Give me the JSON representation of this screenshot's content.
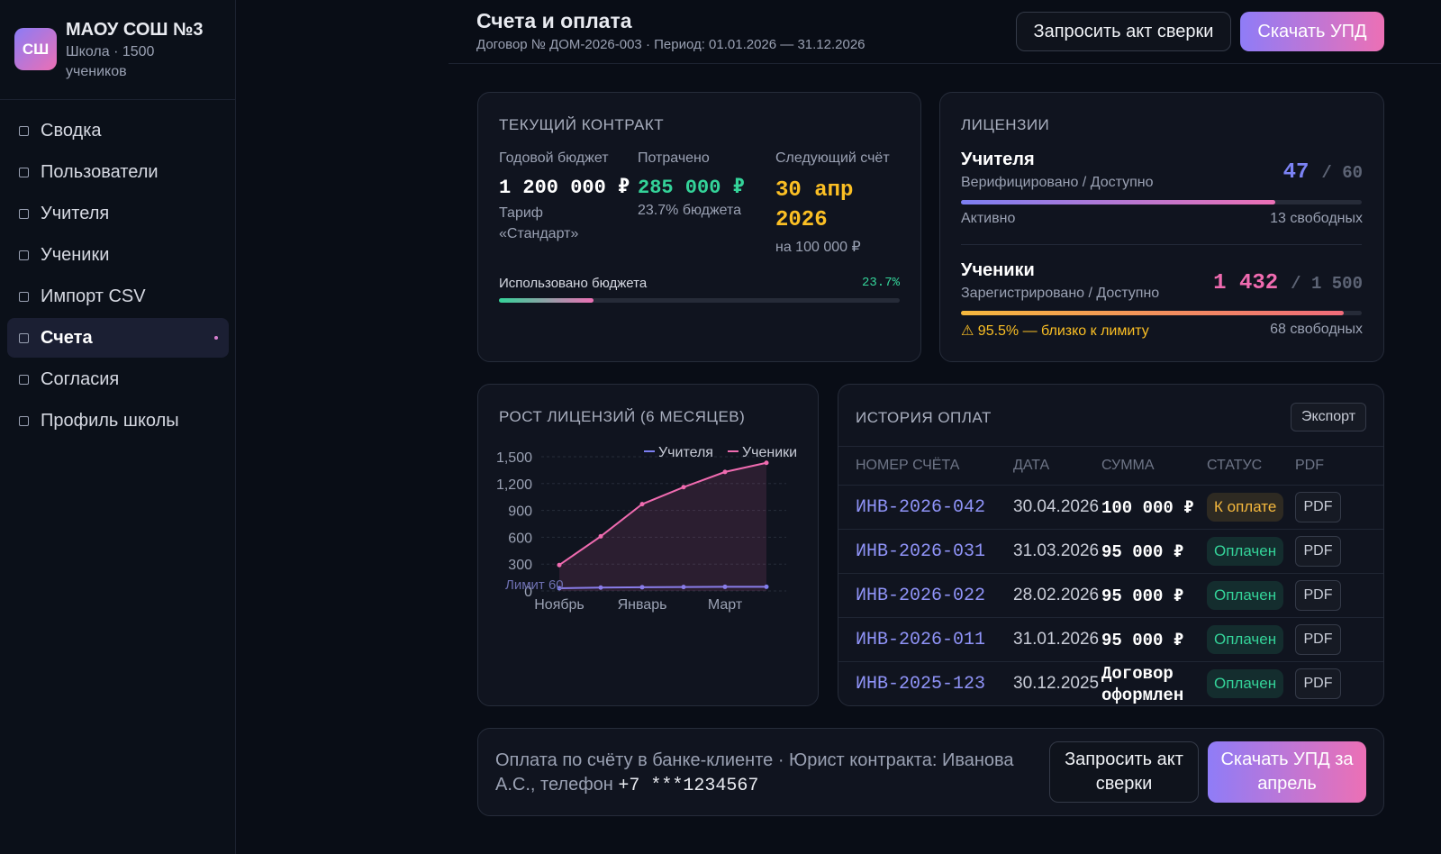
{
  "sidebar": {
    "logo": "СШ",
    "org_name": "МАОУ СОШ №3",
    "org_sub": "Школа · 1500 учеников",
    "nav": [
      {
        "label": "Сводка"
      },
      {
        "label": "Пользователи"
      },
      {
        "label": "Учителя"
      },
      {
        "label": "Ученики"
      },
      {
        "label": "Импорт CSV"
      },
      {
        "label": "Счета",
        "active": true
      },
      {
        "label": "Согласия"
      },
      {
        "label": "Профиль школы"
      }
    ]
  },
  "header": {
    "title": "Счета и оплата",
    "subtitle": "Договор № ДОМ-2026-003 · Период: 01.01.2026 — 31.12.2026",
    "buttons": [
      "Запросить акт сверки",
      "Скачать УПД"
    ]
  },
  "contract": {
    "title": "ТЕКУЩИЙ КОНТРАКТ",
    "columns": [
      {
        "label": "Годовой бюджет",
        "value": "1 200 000 ₽",
        "note": "Тариф «Стандарт»"
      },
      {
        "label": "Потрачено",
        "value": "285 000 ₽",
        "note": "23.7% бюджета"
      },
      {
        "label": "Следующий счёт",
        "value": "30 апр 2026",
        "note": "на 100 000 ₽"
      }
    ],
    "progress": {
      "label": "Использовано бюджета",
      "value": 23.7,
      "value_label": "23.7%"
    }
  },
  "licenses": {
    "title": "ЛИЦЕНЗИИ",
    "items": [
      {
        "name": "Учителя",
        "sub": "Верифицировано / Доступно",
        "used": 47,
        "total": {
          "value": 60,
          "label": "/ 60"
        },
        "status": "Активно",
        "free": "13 свободных"
      },
      {
        "name": "Ученики",
        "sub": "Зарегистрировано / Доступно",
        "used": {
          "value": 1432,
          "label": "1 432"
        },
        "total": {
          "value": 1500,
          "label": "/ 1 500"
        },
        "status": "⚠ 95.5% — близко к лимиту",
        "free": "68 свободных"
      }
    ]
  },
  "chart_data": {
    "type": "line",
    "title": "РОСТ ЛИЦЕНЗИЙ (6 МЕСЯЦЕВ)",
    "categories": [
      "Ноябрь",
      null,
      "Январь",
      null,
      "Март",
      null
    ],
    "series": [
      {
        "name": "Учителя",
        "color": "#7c7ff2",
        "values": [
          30,
          38,
          42,
          44,
          46,
          47
        ]
      },
      {
        "name": "Ученики",
        "color": "#f06bb0",
        "values": [
          290,
          610,
          970,
          1160,
          1330,
          1432
        ]
      }
    ],
    "ylim": [
      0,
      1500
    ],
    "yticks": [
      0,
      300,
      600,
      900,
      {
        "value": 1200,
        "label": "1,200"
      },
      {
        "value": 1500,
        "label": "1,500"
      }
    ],
    "grid": true,
    "annotation": "Лимит 60"
  },
  "payments": {
    "title": "ИСТОРИЯ ОПЛАТ",
    "export": "Экспорт",
    "columns": [
      "НОМЕР СЧЁТА",
      "ДАТА",
      "СУММА",
      "СТАТУС",
      "PDF"
    ],
    "rows": [
      {
        "number": "ИНВ-2026-042",
        "date": "30.04.2026",
        "amount": "100 000 ₽",
        "status": "К оплате",
        "status_color": "#f5b83d",
        "pdf": "PDF"
      },
      {
        "number": "ИНВ-2026-031",
        "date": "31.03.2026",
        "amount": "95 000 ₽",
        "status": "Оплачен",
        "status_color": "#34d399",
        "pdf": "PDF"
      },
      {
        "number": "ИНВ-2026-022",
        "date": "28.02.2026",
        "amount": "95 000 ₽",
        "status": "Оплачен",
        "status_color": "#34d399",
        "pdf": "PDF"
      },
      {
        "number": "ИНВ-2026-011",
        "date": "31.01.2026",
        "amount": "95 000 ₽",
        "status": "Оплачен",
        "status_color": "#34d399",
        "pdf": "PDF"
      },
      {
        "number": "ИНВ-2025-123",
        "date": "30.12.2025",
        "amount": "Договор оформлен",
        "status": "Оплачен",
        "status_color": "#34d399",
        "pdf": "PDF"
      }
    ]
  },
  "footer": {
    "text": "Оплата по счёту в банке-клиенте · Юрист контракта: Иванова А.С., телефон",
    "phone": "+7 ***1234567",
    "buttons": [
      "Запросить акт сверки",
      "Скачать УПД за апрель"
    ]
  }
}
